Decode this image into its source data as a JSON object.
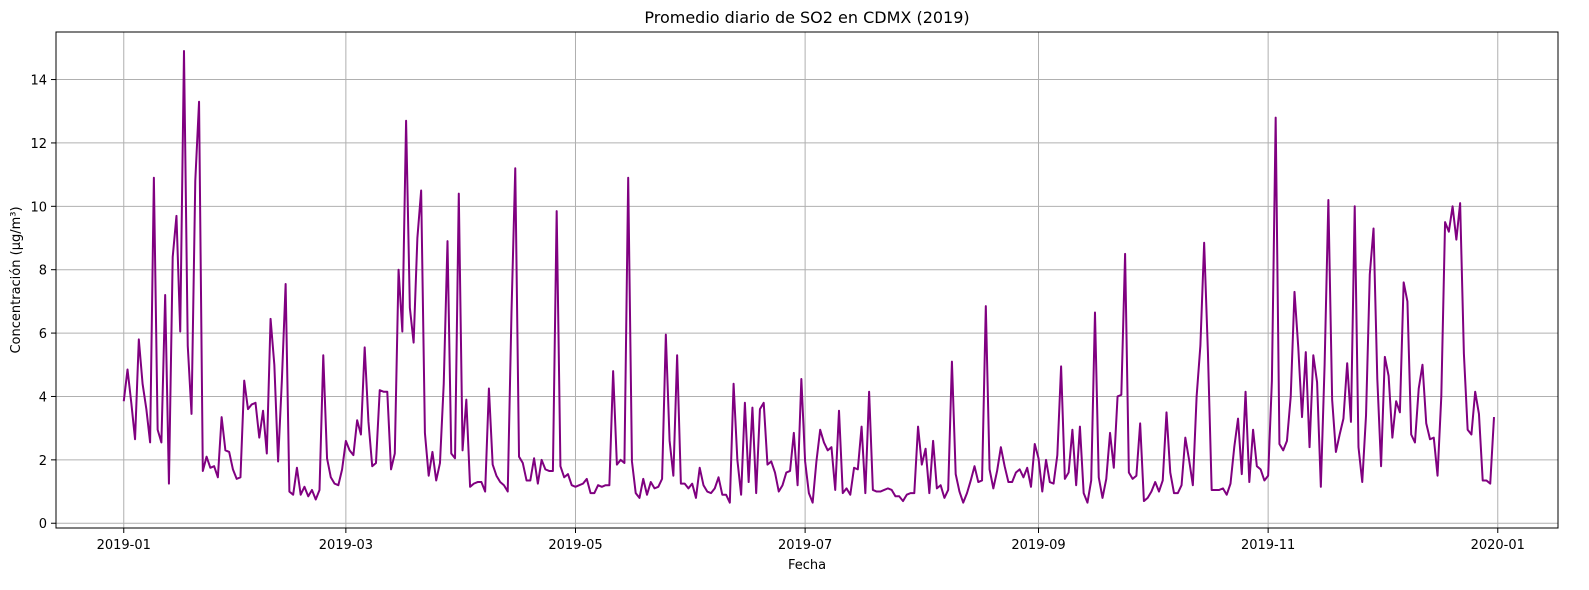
{
  "chart_data": {
    "type": "line",
    "title": "Promedio diario de SO2 en CDMX (2019)",
    "xlabel": "Fecha",
    "ylabel": "Concentración (µg/m³)",
    "x_range": [
      "2018-12-14",
      "2020-01-17"
    ],
    "xticks": [
      "2019-01",
      "2019-03",
      "2019-05",
      "2019-07",
      "2019-09",
      "2019-11",
      "2020-01"
    ],
    "ylim": [
      -0.15,
      15.5
    ],
    "yticks": [
      0,
      2,
      4,
      6,
      8,
      10,
      12,
      14
    ],
    "grid": true,
    "line_color": "#800080",
    "series": [
      {
        "x": [
          "2019-01-01",
          "2019-01-02",
          "2019-01-03",
          "2019-01-04",
          "2019-01-05",
          "2019-01-06",
          "2019-01-07",
          "2019-01-08",
          "2019-01-09",
          "2019-01-10",
          "2019-01-11",
          "2019-01-12",
          "2019-01-13",
          "2019-01-14",
          "2019-01-15",
          "2019-01-16",
          "2019-01-17",
          "2019-01-18",
          "2019-01-19",
          "2019-01-20",
          "2019-01-21",
          "2019-01-22",
          "2019-01-23",
          "2019-01-24",
          "2019-01-25",
          "2019-01-26",
          "2019-01-27",
          "2019-01-28",
          "2019-01-29",
          "2019-01-30",
          "2019-01-31",
          "2019-02-01",
          "2019-02-02",
          "2019-02-03",
          "2019-02-04",
          "2019-02-05",
          "2019-02-06",
          "2019-02-07",
          "2019-02-08",
          "2019-02-09",
          "2019-02-10",
          "2019-02-11",
          "2019-02-12",
          "2019-02-13",
          "2019-02-14",
          "2019-02-15",
          "2019-02-16",
          "2019-02-17",
          "2019-02-18",
          "2019-02-19",
          "2019-02-20",
          "2019-02-21",
          "2019-02-22",
          "2019-02-23",
          "2019-02-24",
          "2019-02-25",
          "2019-02-26",
          "2019-02-27",
          "2019-02-28",
          "2019-03-01",
          "2019-03-02",
          "2019-03-03",
          "2019-03-04",
          "2019-03-05",
          "2019-03-06",
          "2019-03-07",
          "2019-03-08",
          "2019-03-09",
          "2019-03-10",
          "2019-03-11",
          "2019-03-12",
          "2019-03-13",
          "2019-03-14",
          "2019-03-15",
          "2019-03-16",
          "2019-03-17",
          "2019-03-18",
          "2019-03-19",
          "2019-03-20",
          "2019-03-21",
          "2019-03-22",
          "2019-03-23",
          "2019-03-24",
          "2019-03-25",
          "2019-03-26",
          "2019-03-27",
          "2019-03-28",
          "2019-03-29",
          "2019-03-30",
          "2019-03-31",
          "2019-04-01",
          "2019-04-02",
          "2019-04-03",
          "2019-04-04",
          "2019-04-05",
          "2019-04-06",
          "2019-04-07",
          "2019-04-08",
          "2019-04-09",
          "2019-04-10",
          "2019-04-11",
          "2019-04-12",
          "2019-04-13",
          "2019-04-14",
          "2019-04-15",
          "2019-04-16",
          "2019-04-17",
          "2019-04-18",
          "2019-04-19",
          "2019-04-20",
          "2019-04-21",
          "2019-04-22",
          "2019-04-23",
          "2019-04-24",
          "2019-04-25",
          "2019-04-26",
          "2019-04-27",
          "2019-04-28",
          "2019-04-29",
          "2019-04-30",
          "2019-05-01",
          "2019-05-02",
          "2019-05-03",
          "2019-05-04",
          "2019-05-05",
          "2019-05-06",
          "2019-05-07",
          "2019-05-08",
          "2019-05-09",
          "2019-05-10",
          "2019-05-11",
          "2019-05-12",
          "2019-05-13",
          "2019-05-14",
          "2019-05-15",
          "2019-05-16",
          "2019-05-17",
          "2019-05-18",
          "2019-05-19",
          "2019-05-20",
          "2019-05-21",
          "2019-05-22",
          "2019-05-23",
          "2019-05-24",
          "2019-05-25",
          "2019-05-26",
          "2019-05-27",
          "2019-05-28",
          "2019-05-29",
          "2019-05-30",
          "2019-05-31",
          "2019-06-01",
          "2019-06-02",
          "2019-06-03",
          "2019-06-04",
          "2019-06-05",
          "2019-06-06",
          "2019-06-07",
          "2019-06-08",
          "2019-06-09",
          "2019-06-10",
          "2019-06-11",
          "2019-06-12",
          "2019-06-13",
          "2019-06-14",
          "2019-06-15",
          "2019-06-16",
          "2019-06-17",
          "2019-06-18",
          "2019-06-19",
          "2019-06-20",
          "2019-06-21",
          "2019-06-22",
          "2019-06-23",
          "2019-06-24",
          "2019-06-25",
          "2019-06-26",
          "2019-06-27",
          "2019-06-28",
          "2019-06-29",
          "2019-06-30",
          "2019-07-01",
          "2019-07-02",
          "2019-07-03",
          "2019-07-04",
          "2019-07-05",
          "2019-07-06",
          "2019-07-07",
          "2019-07-08",
          "2019-07-09",
          "2019-07-10",
          "2019-07-11",
          "2019-07-12",
          "2019-07-13",
          "2019-07-14",
          "2019-07-15",
          "2019-07-16",
          "2019-07-17",
          "2019-07-18",
          "2019-07-19",
          "2019-07-20",
          "2019-07-21",
          "2019-07-22",
          "2019-07-23",
          "2019-07-24",
          "2019-07-25",
          "2019-07-26",
          "2019-07-27",
          "2019-07-28",
          "2019-07-29",
          "2019-07-30",
          "2019-07-31",
          "2019-08-01",
          "2019-08-02",
          "2019-08-03",
          "2019-08-04",
          "2019-08-05",
          "2019-08-06",
          "2019-08-07",
          "2019-08-08",
          "2019-08-09",
          "2019-08-10",
          "2019-08-11",
          "2019-08-12",
          "2019-08-13",
          "2019-08-14",
          "2019-08-15",
          "2019-08-16",
          "2019-08-17",
          "2019-08-18",
          "2019-08-19",
          "2019-08-20",
          "2019-08-21",
          "2019-08-22",
          "2019-08-23",
          "2019-08-24",
          "2019-08-25",
          "2019-08-26",
          "2019-08-27",
          "2019-08-28",
          "2019-08-29",
          "2019-08-30",
          "2019-08-31",
          "2019-09-01",
          "2019-09-02",
          "2019-09-03",
          "2019-09-04",
          "2019-09-05",
          "2019-09-06",
          "2019-09-07",
          "2019-09-08",
          "2019-09-09",
          "2019-09-10",
          "2019-09-11",
          "2019-09-12",
          "2019-09-13",
          "2019-09-14",
          "2019-09-15",
          "2019-09-16",
          "2019-09-17",
          "2019-09-18",
          "2019-09-19",
          "2019-09-20",
          "2019-09-21",
          "2019-09-22",
          "2019-09-23",
          "2019-09-24",
          "2019-09-25",
          "2019-09-26",
          "2019-09-27",
          "2019-09-28",
          "2019-09-29",
          "2019-09-30",
          "2019-10-01",
          "2019-10-02",
          "2019-10-03",
          "2019-10-04",
          "2019-10-05",
          "2019-10-06",
          "2019-10-07",
          "2019-10-08",
          "2019-10-09",
          "2019-10-10",
          "2019-10-11",
          "2019-10-12",
          "2019-10-13",
          "2019-10-14",
          "2019-10-15",
          "2019-10-16",
          "2019-10-17",
          "2019-10-18",
          "2019-10-19",
          "2019-10-20",
          "2019-10-21",
          "2019-10-22",
          "2019-10-23",
          "2019-10-24",
          "2019-10-25",
          "2019-10-26",
          "2019-10-27",
          "2019-10-28",
          "2019-10-29",
          "2019-10-30",
          "2019-10-31",
          "2019-11-01",
          "2019-11-02",
          "2019-11-03",
          "2019-11-04",
          "2019-11-05",
          "2019-11-06",
          "2019-11-07",
          "2019-11-08",
          "2019-11-09",
          "2019-11-10",
          "2019-11-11",
          "2019-11-12",
          "2019-11-13",
          "2019-11-14",
          "2019-11-15",
          "2019-11-16",
          "2019-11-17",
          "2019-11-18",
          "2019-11-19",
          "2019-11-20",
          "2019-11-21",
          "2019-11-22",
          "2019-11-23",
          "2019-11-24",
          "2019-11-25",
          "2019-11-26",
          "2019-11-27",
          "2019-11-28",
          "2019-11-29",
          "2019-11-30",
          "2019-12-01",
          "2019-12-02",
          "2019-12-03",
          "2019-12-04",
          "2019-12-05",
          "2019-12-06",
          "2019-12-07",
          "2019-12-08",
          "2019-12-09",
          "2019-12-10",
          "2019-12-11",
          "2019-12-12",
          "2019-12-13",
          "2019-12-14",
          "2019-12-15",
          "2019-12-16",
          "2019-12-17",
          "2019-12-18",
          "2019-12-19",
          "2019-12-20",
          "2019-12-21",
          "2019-12-22",
          "2019-12-23",
          "2019-12-24",
          "2019-12-25",
          "2019-12-26",
          "2019-12-27",
          "2019-12-28",
          "2019-12-29",
          "2019-12-30",
          "2019-12-31"
        ],
        "y": [
          3.85,
          4.85,
          3.8,
          2.65,
          5.8,
          4.4,
          3.6,
          2.55,
          10.9,
          2.95,
          2.55,
          7.2,
          1.25,
          8.4,
          9.7,
          6.05,
          14.9,
          5.6,
          3.45,
          10.8,
          13.3,
          1.65,
          2.1,
          1.75,
          1.8,
          1.45,
          3.35,
          2.3,
          2.25,
          1.7,
          1.4,
          1.45,
          4.5,
          3.6,
          3.75,
          3.8,
          2.7,
          3.55,
          2.2,
          6.45,
          5.0,
          1.95,
          4.5,
          7.55,
          1.0,
          0.9,
          1.75,
          0.9,
          1.15,
          0.85,
          1.05,
          0.75,
          1.05,
          5.3,
          2.05,
          1.45,
          1.25,
          1.2,
          1.7,
          2.6,
          2.3,
          2.15,
          3.25,
          2.8,
          5.55,
          3.2,
          1.8,
          1.9,
          4.2,
          4.15,
          4.15,
          1.7,
          2.2,
          8.0,
          6.05,
          12.7,
          6.8,
          5.7,
          9.0,
          10.5,
          2.85,
          1.5,
          2.25,
          1.35,
          1.9,
          4.4,
          8.9,
          2.2,
          2.05,
          10.4,
          2.3,
          3.9,
          1.15,
          1.25,
          1.3,
          1.3,
          1.0,
          4.25,
          1.85,
          1.5,
          1.3,
          1.2,
          1.0,
          6.65,
          11.2,
          2.1,
          1.9,
          1.35,
          1.35,
          2.05,
          1.25,
          2.0,
          1.7,
          1.65,
          1.65,
          9.85,
          1.8,
          1.45,
          1.55,
          1.2,
          1.15,
          1.2,
          1.25,
          1.4,
          0.95,
          0.95,
          1.2,
          1.15,
          1.2,
          1.2,
          4.8,
          1.85,
          2.0,
          1.9,
          10.9,
          1.95,
          0.95,
          0.8,
          1.4,
          0.9,
          1.3,
          1.1,
          1.15,
          1.4,
          5.95,
          2.6,
          1.5,
          5.3,
          1.25,
          1.25,
          1.1,
          1.25,
          0.8,
          1.75,
          1.2,
          1.0,
          0.95,
          1.1,
          1.45,
          0.9,
          0.9,
          0.65,
          4.4,
          2.0,
          0.9,
          3.8,
          1.3,
          3.65,
          0.95,
          3.6,
          3.8,
          1.85,
          1.95,
          1.6,
          1.0,
          1.2,
          1.6,
          1.65,
          2.85,
          1.2,
          4.55,
          1.95,
          0.95,
          0.65,
          1.95,
          2.95,
          2.55,
          2.3,
          2.4,
          1.05,
          3.55,
          0.95,
          1.1,
          0.9,
          1.75,
          1.7,
          3.05,
          0.95,
          4.15,
          1.05,
          1.0,
          1.0,
          1.05,
          1.1,
          1.05,
          0.85,
          0.85,
          0.7,
          0.9,
          0.95,
          0.95,
          3.05,
          1.85,
          2.35,
          0.95,
          2.6,
          1.1,
          1.2,
          0.8,
          1.05,
          5.1,
          1.55,
          1.0,
          0.65,
          0.95,
          1.35,
          1.8,
          1.3,
          1.35,
          6.85,
          1.7,
          1.1,
          1.65,
          2.4,
          1.8,
          1.3,
          1.3,
          1.6,
          1.7,
          1.45,
          1.75,
          1.15,
          2.5,
          2.05,
          1.0,
          2.0,
          1.3,
          1.25,
          2.15,
          4.95,
          1.4,
          1.6,
          2.95,
          1.2,
          3.05,
          0.95,
          0.65,
          1.35,
          6.65,
          1.45,
          0.8,
          1.4,
          2.85,
          1.75,
          4.0,
          4.05,
          8.5,
          1.6,
          1.4,
          1.5,
          3.15,
          0.7,
          0.8,
          1.0,
          1.3,
          1.0,
          1.35,
          3.5,
          1.6,
          0.95,
          0.95,
          1.2,
          2.7,
          2.0,
          1.2,
          4.0,
          5.6,
          8.85,
          5.4,
          1.05,
          1.05,
          1.05,
          1.1,
          0.9,
          1.25,
          2.4,
          3.3,
          1.55,
          4.15,
          1.3,
          2.95,
          1.8,
          1.7,
          1.35,
          1.5,
          4.5,
          12.8,
          2.5,
          2.3,
          2.6,
          4.0,
          7.3,
          5.55,
          3.35,
          5.4,
          2.4,
          5.3,
          4.45,
          1.15,
          5.0,
          10.2,
          3.9,
          2.25,
          2.8,
          3.3,
          5.05,
          3.2,
          10.0,
          2.4,
          1.3,
          3.4,
          7.85,
          9.3,
          4.55,
          1.8,
          5.25,
          4.65,
          2.7,
          3.85,
          3.5,
          7.6,
          7.0,
          2.8,
          2.55,
          4.25,
          5.0,
          3.15,
          2.65,
          2.7,
          1.5,
          4.0,
          9.5,
          9.2,
          10.0,
          8.95,
          10.1,
          5.35,
          2.95,
          2.8,
          4.15,
          3.45,
          1.35,
          1.35,
          1.25,
          3.35
        ]
      }
    ]
  }
}
